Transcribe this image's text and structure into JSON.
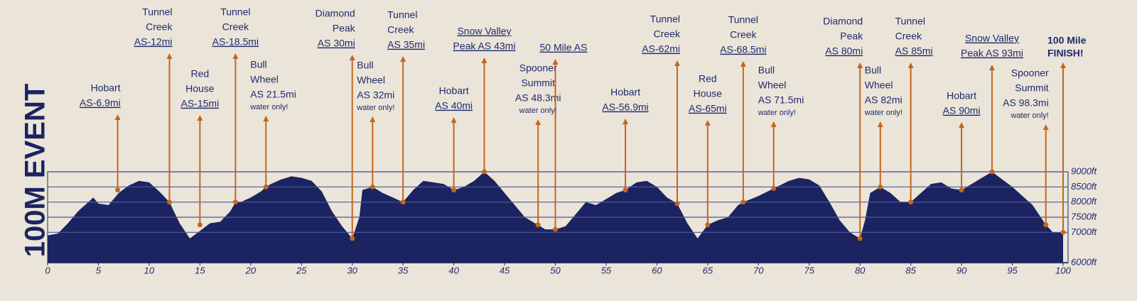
{
  "chart_data": {
    "type": "area",
    "title": "100M EVENT",
    "color": "#1b2460",
    "x": [
      0,
      1,
      2,
      3,
      4,
      4.5,
      5,
      6,
      7,
      8,
      9,
      10,
      11,
      12,
      13,
      14,
      15,
      16,
      17,
      18,
      18.5,
      19,
      20,
      21,
      21.5,
      22,
      23,
      24,
      25,
      26,
      27,
      28,
      29,
      30,
      30.7,
      31,
      32,
      33,
      34,
      35,
      36,
      37,
      38,
      39,
      40,
      41,
      42,
      43,
      44,
      45,
      46,
      47,
      48,
      48.3,
      49,
      50,
      51,
      52,
      53,
      54,
      55,
      56,
      56.9,
      58,
      59,
      60,
      61,
      62,
      63,
      64,
      65,
      66,
      67,
      68,
      68.5,
      70,
      71.5,
      73,
      74,
      75,
      76,
      77,
      78,
      79,
      80,
      80.5,
      81,
      82,
      83,
      84,
      85,
      86,
      87,
      88,
      89,
      90,
      91,
      92,
      93,
      94,
      95,
      96,
      97,
      98,
      98.3,
      99,
      100
    ],
    "values": [
      6900,
      6960,
      7300,
      7700,
      8000,
      8150,
      7950,
      7900,
      8300,
      8550,
      8700,
      8650,
      8350,
      8000,
      7300,
      6800,
      7050,
      7300,
      7350,
      7700,
      8000,
      8000,
      8150,
      8350,
      8500,
      8600,
      8750,
      8850,
      8800,
      8700,
      8350,
      7700,
      7200,
      6800,
      7500,
      8400,
      8500,
      8300,
      8150,
      8000,
      8400,
      8700,
      8650,
      8600,
      8400,
      8500,
      8700,
      9000,
      8700,
      8300,
      7900,
      7500,
      7300,
      7250,
      7100,
      7100,
      7200,
      7600,
      8000,
      7900,
      8100,
      8300,
      8400,
      8650,
      8700,
      8500,
      8150,
      7950,
      7300,
      6800,
      7250,
      7400,
      7500,
      7900,
      8000,
      8200,
      8450,
      8700,
      8800,
      8750,
      8550,
      8000,
      7400,
      7000,
      6800,
      7400,
      8300,
      8500,
      8300,
      8000,
      8000,
      8300,
      8600,
      8650,
      8450,
      8400,
      8600,
      8800,
      9000,
      8750,
      8500,
      8200,
      7900,
      7400,
      7250,
      7000,
      7000
    ],
    "xlim": [
      0,
      100
    ],
    "xticks": [
      0,
      5,
      10,
      15,
      20,
      25,
      30,
      35,
      40,
      45,
      50,
      55,
      60,
      65,
      70,
      75,
      80,
      85,
      90,
      95,
      100
    ],
    "ylim": [
      6000,
      9000
    ],
    "yticks": [
      {
        "value": 6000,
        "label": "6000ft"
      },
      {
        "value": 7000,
        "label": "7000ft"
      },
      {
        "value": 7500,
        "label": "7500ft"
      },
      {
        "value": 8000,
        "label": "8000ft"
      },
      {
        "value": 8500,
        "label": "8500ft"
      },
      {
        "value": 9000,
        "label": "9000ft"
      }
    ],
    "grid": true,
    "annotation_color": "#c4661e",
    "annotations": [
      {
        "lines": [
          "Hobart",
          "AS-6.9mi"
        ],
        "underline": [
          false,
          true
        ],
        "x": 6.9,
        "elevation": 8400
      },
      {
        "lines": [
          "Tunnel",
          "Creek",
          "AS-12mi"
        ],
        "underline": [
          false,
          false,
          true
        ],
        "x": 12,
        "elevation": 8000
      },
      {
        "lines": [
          "Red",
          "House",
          "AS-15mi"
        ],
        "underline": [
          false,
          false,
          true
        ],
        "x": 15,
        "elevation": 7250
      },
      {
        "lines": [
          "Tunnel",
          "Creek",
          "AS-18.5mi"
        ],
        "underline": [
          false,
          false,
          true
        ],
        "x": 18.5,
        "elevation": 8000
      },
      {
        "lines": [
          "Bull",
          "Wheel",
          "AS 21.5mi"
        ],
        "underline": [
          false,
          false,
          false
        ],
        "note": "water only!",
        "x": 21.5,
        "elevation": 8500
      },
      {
        "lines": [
          "Diamond",
          "Peak",
          "AS 30mi"
        ],
        "underline": [
          false,
          false,
          true
        ],
        "x": 30,
        "elevation": 6800
      },
      {
        "lines": [
          "Bull",
          "Wheel",
          "AS 32mi"
        ],
        "underline": [
          false,
          false,
          false
        ],
        "note": "water only!",
        "x": 32,
        "elevation": 8500
      },
      {
        "lines": [
          "Tunnel",
          "Creek",
          "AS 35mi"
        ],
        "underline": [
          false,
          false,
          true
        ],
        "x": 35,
        "elevation": 8000
      },
      {
        "lines": [
          "Hobart",
          "AS 40mi"
        ],
        "underline": [
          false,
          true
        ],
        "x": 40,
        "elevation": 8400
      },
      {
        "lines": [
          "Snow Valley",
          "Peak AS 43mi"
        ],
        "underline": [
          true,
          true
        ],
        "x": 43,
        "elevation": 9000
      },
      {
        "lines": [
          "Spooner",
          "Summit",
          "AS 48.3mi"
        ],
        "underline": [
          false,
          false,
          false
        ],
        "note": "water only!",
        "x": 48.3,
        "elevation": 7250
      },
      {
        "lines": [
          "50 Mile AS"
        ],
        "underline": [
          true
        ],
        "x": 50,
        "elevation": 7100
      },
      {
        "lines": [
          "Hobart",
          "AS-56.9mi"
        ],
        "underline": [
          false,
          true
        ],
        "x": 56.9,
        "elevation": 8400
      },
      {
        "lines": [
          "Tunnel",
          "Creek",
          "AS-62mi"
        ],
        "underline": [
          false,
          false,
          true
        ],
        "x": 62,
        "elevation": 7950
      },
      {
        "lines": [
          "Red",
          "House",
          "AS-65mi"
        ],
        "underline": [
          false,
          false,
          true
        ],
        "x": 65,
        "elevation": 7250
      },
      {
        "lines": [
          "Tunnel",
          "Creek",
          "AS-68.5mi"
        ],
        "underline": [
          false,
          false,
          true
        ],
        "x": 68.5,
        "elevation": 8000
      },
      {
        "lines": [
          "Bull",
          "Wheel",
          "AS 71.5mi"
        ],
        "underline": [
          false,
          false,
          false
        ],
        "note": "water only!",
        "x": 71.5,
        "elevation": 8450
      },
      {
        "lines": [
          "Diamond",
          "Peak",
          "AS 80mi"
        ],
        "underline": [
          false,
          false,
          true
        ],
        "x": 80,
        "elevation": 6800
      },
      {
        "lines": [
          "Bull",
          "Wheel",
          "AS 82mi"
        ],
        "underline": [
          false,
          false,
          false
        ],
        "note": "water only!",
        "x": 82,
        "elevation": 8500
      },
      {
        "lines": [
          "Tunnel",
          "Creek",
          "AS 85mi"
        ],
        "underline": [
          false,
          false,
          true
        ],
        "x": 85,
        "elevation": 8000
      },
      {
        "lines": [
          "Hobart",
          "AS 90mi"
        ],
        "underline": [
          false,
          true
        ],
        "x": 90,
        "elevation": 8400
      },
      {
        "lines": [
          "Snow Valley",
          "Peak AS 93mi"
        ],
        "underline": [
          true,
          true
        ],
        "x": 93,
        "elevation": 9000
      },
      {
        "lines": [
          "Spooner",
          "Summit",
          "AS 98.3mi"
        ],
        "underline": [
          false,
          false,
          false
        ],
        "note": "water only!",
        "x": 98.3,
        "elevation": 7250
      },
      {
        "lines": [
          "100 Mile",
          "FINISH!"
        ],
        "underline": [
          false,
          false
        ],
        "bold": true,
        "x": 100,
        "elevation": 7000
      }
    ]
  }
}
